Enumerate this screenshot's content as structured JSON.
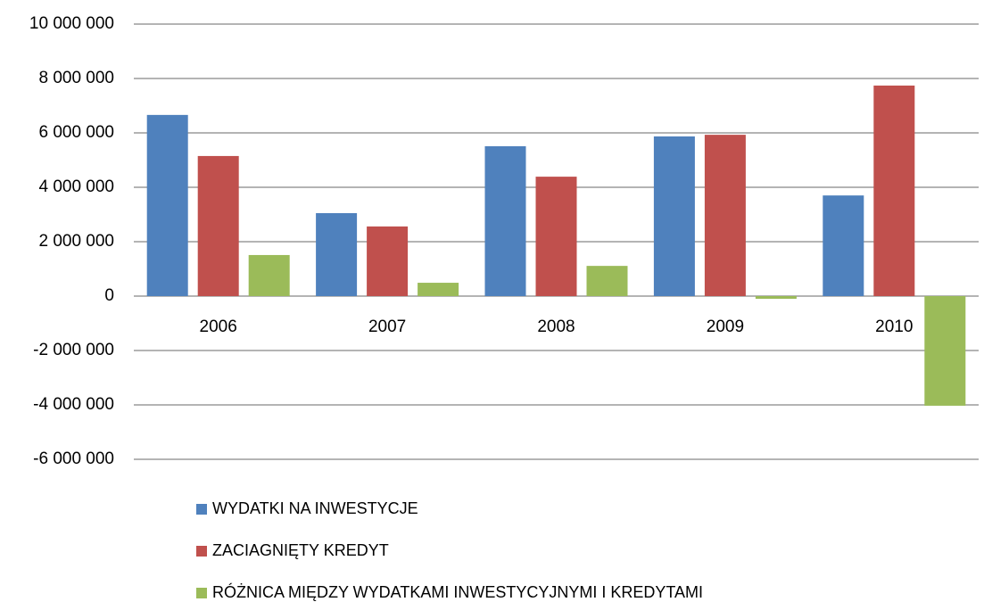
{
  "chart_data": {
    "type": "bar",
    "categories": [
      "2006",
      "2007",
      "2008",
      "2009",
      "2010"
    ],
    "series": [
      {
        "name": "WYDATKI NA INWESTYCJE",
        "color": "#4f81bd",
        "values": [
          6660000,
          3050000,
          5510000,
          5870000,
          3700000
        ]
      },
      {
        "name": "ZACIAGNIĘTY KREDYT",
        "color": "#c0504d",
        "values": [
          5150000,
          2560000,
          4390000,
          5930000,
          7740000
        ]
      },
      {
        "name": "RÓŻNICA MIĘDZY WYDATKAMI INWESTYCYJNYMI I KREDYTAMI",
        "color": "#9bbb59",
        "values": [
          1510000,
          490000,
          1110000,
          -100000,
          -4030000
        ]
      }
    ],
    "ylim": [
      -6000000,
      10000000
    ],
    "yticks": [
      {
        "value": -6000000,
        "label": "-6 000 000"
      },
      {
        "value": -4000000,
        "label": "-4 000 000"
      },
      {
        "value": -2000000,
        "label": "-2 000 000"
      },
      0,
      {
        "value": 2000000,
        "label": "2 000 000"
      },
      {
        "value": 4000000,
        "label": "4 000 000"
      },
      {
        "value": 6000000,
        "label": "6 000 000"
      },
      {
        "value": 8000000,
        "label": "8 000 000"
      },
      {
        "value": 10000000,
        "label": "10 000 000"
      }
    ],
    "grid": true,
    "legend": "bottom"
  }
}
